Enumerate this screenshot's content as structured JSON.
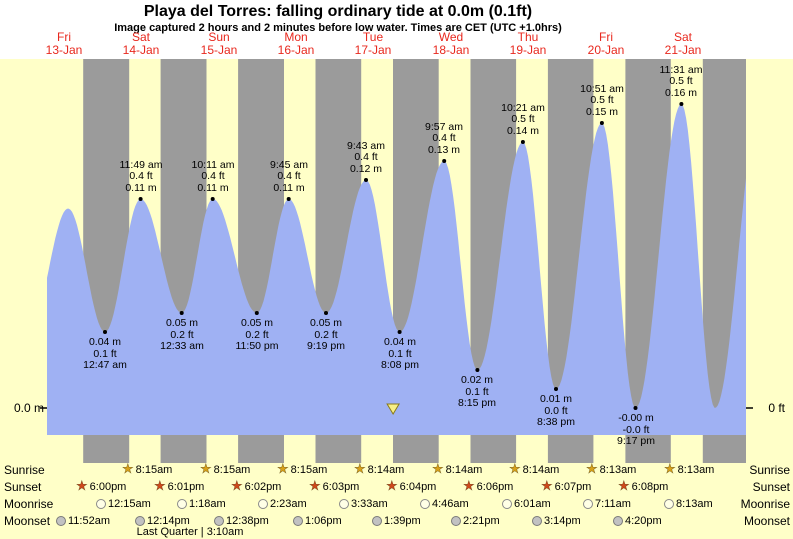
{
  "title": "Playa del Torres: falling  ordinary tide at 0.0m (0.1ft)",
  "subtitle": "Image captured 2 hours and 2 minutes before low water. Times are CET (UTC +1.0hrs)",
  "axis": {
    "left_zero_label": "0.0 m",
    "right_zero_label": "0 ft"
  },
  "days": [
    {
      "name": "Fri",
      "date": "13-Jan"
    },
    {
      "name": "Sat",
      "date": "14-Jan"
    },
    {
      "name": "Sun",
      "date": "15-Jan"
    },
    {
      "name": "Mon",
      "date": "16-Jan"
    },
    {
      "name": "Tue",
      "date": "17-Jan"
    },
    {
      "name": "Wed",
      "date": "18-Jan"
    },
    {
      "name": "Thu",
      "date": "19-Jan"
    },
    {
      "name": "Fri",
      "date": "20-Jan"
    },
    {
      "name": "Sat",
      "date": "21-Jan"
    }
  ],
  "chart_data": {
    "type": "area",
    "x_unit": "days since Fri 13-Jan 00:00 CET",
    "y_unit": "m",
    "x_range_days": [
      0.283,
      9.314
    ],
    "y_axis_zero": {
      "m": "0.0 m",
      "ft": "0 ft"
    },
    "highs": [
      {
        "time": "11:49 am",
        "ft": "0.4 ft",
        "m": "0.11 m",
        "t": 1.4924,
        "h": 0.11
      },
      {
        "time": "10:11 am",
        "ft": "0.4 ft",
        "m": "0.11 m",
        "t": 2.4243,
        "h": 0.11
      },
      {
        "time": "9:45 am",
        "ft": "0.4 ft",
        "m": "0.11 m",
        "t": 3.4063,
        "h": 0.11
      },
      {
        "time": "9:43 am",
        "ft": "0.4 ft",
        "m": "0.12 m",
        "t": 4.4049,
        "h": 0.12
      },
      {
        "time": "9:57 am",
        "ft": "0.4 ft",
        "m": "0.13 m",
        "t": 5.4146,
        "h": 0.13
      },
      {
        "time": "10:21 am",
        "ft": "0.5 ft",
        "m": "0.14 m",
        "t": 6.4313,
        "h": 0.14
      },
      {
        "time": "10:51 am",
        "ft": "0.5 ft",
        "m": "0.15 m",
        "t": 7.4521,
        "h": 0.15
      },
      {
        "time": "11:31 am",
        "ft": "0.5 ft",
        "m": "0.16 m",
        "t": 8.4799,
        "h": 0.16
      }
    ],
    "lows": [
      {
        "m": "0.04 m",
        "ft": "0.1 ft",
        "time": "12:47 am",
        "t": 1.0326,
        "h": 0.04
      },
      {
        "m": "0.05 m",
        "ft": "0.2 ft",
        "time": "12:33 am",
        "t": 2.0229,
        "h": 0.05
      },
      {
        "m": "0.05 m",
        "ft": "0.2 ft",
        "time": "11:50 pm",
        "t": 2.9931,
        "h": 0.05
      },
      {
        "m": "0.05 m",
        "ft": "0.2 ft",
        "time": "9:19 pm",
        "t": 3.8882,
        "h": 0.05
      },
      {
        "m": "0.04 m",
        "ft": "0.1 ft",
        "time": "8:08 pm",
        "t": 4.8389,
        "h": 0.04
      },
      {
        "m": "0.02 m",
        "ft": "0.1 ft",
        "time": "8:15 pm",
        "t": 5.8438,
        "h": 0.02
      },
      {
        "m": "0.01 m",
        "ft": "0.0 ft",
        "time": "8:38 pm",
        "t": 6.8597,
        "h": 0.01
      },
      {
        "m": "-0.00 m",
        "ft": "-0.0 ft",
        "time": "9:17 pm",
        "t": 7.8868,
        "h": 0.0
      }
    ],
    "edge_extremes_unlabeled": [
      {
        "t": 0.05,
        "h": 0.04
      },
      {
        "t": 0.556,
        "h": 0.105
      },
      {
        "t": 8.914,
        "h": 0.0
      },
      {
        "t": 9.51,
        "h": 0.16
      }
    ],
    "capture_marker_t": 4.7542
  },
  "astro": {
    "labels": {
      "sunrise": "Sunrise",
      "sunset": "Sunset",
      "moonrise": "Moonrise",
      "moonset": "Moonset"
    },
    "sunrise": [
      {
        "t": 1.3438,
        "label": "8:15am"
      },
      {
        "t": 2.3438,
        "label": "8:15am"
      },
      {
        "t": 3.3438,
        "label": "8:15am"
      },
      {
        "t": 4.3431,
        "label": "8:14am"
      },
      {
        "t": 5.3431,
        "label": "8:14am"
      },
      {
        "t": 6.3431,
        "label": "8:14am"
      },
      {
        "t": 7.3424,
        "label": "8:13am"
      },
      {
        "t": 8.3424,
        "label": "8:13am"
      }
    ],
    "sunset": [
      {
        "t": 0.75,
        "label": "6:00pm"
      },
      {
        "t": 1.7507,
        "label": "6:01pm"
      },
      {
        "t": 2.7514,
        "label": "6:02pm"
      },
      {
        "t": 3.7521,
        "label": "6:03pm"
      },
      {
        "t": 4.7528,
        "label": "6:04pm"
      },
      {
        "t": 5.7542,
        "label": "6:06pm"
      },
      {
        "t": 6.7549,
        "label": "6:07pm"
      },
      {
        "t": 7.7556,
        "label": "6:08pm"
      }
    ],
    "moonrise": [
      {
        "t": 1.0104,
        "label": "12:15am"
      },
      {
        "t": 2.0542,
        "label": "1:18am"
      },
      {
        "t": 3.0993,
        "label": "2:23am"
      },
      {
        "t": 4.1479,
        "label": "3:33am"
      },
      {
        "t": 5.1986,
        "label": "4:46am"
      },
      {
        "t": 6.2507,
        "label": "6:01am"
      },
      {
        "t": 7.2993,
        "label": "7:11am"
      },
      {
        "t": 8.3424,
        "label": "8:13am"
      }
    ],
    "moonset": [
      {
        "t": 0.4944,
        "label": "11:52am"
      },
      {
        "t": 1.5097,
        "label": "12:14pm"
      },
      {
        "t": 2.5264,
        "label": "12:38pm"
      },
      {
        "t": 3.5458,
        "label": "1:06pm"
      },
      {
        "t": 4.5688,
        "label": "1:39pm"
      },
      {
        "t": 5.5979,
        "label": "2:21pm"
      },
      {
        "t": 6.6347,
        "label": "3:14pm"
      },
      {
        "t": 7.6806,
        "label": "4:20pm"
      }
    ],
    "moon_phase": {
      "label": "Last Quarter | 3:10am",
      "t": 2.1319
    }
  },
  "colors": {
    "header_bg": "#ffffff",
    "day_bg": "#ffffc8",
    "night_band": "#9b9b9b",
    "tide_fill": "#9fb1f3",
    "date_red": "#e8281e",
    "sunrise_star": "#d8a21a",
    "sunset_star": "#d0491b",
    "moonrise_fill": "#ffffe6",
    "moonset_fill": "#c2c2c2",
    "marker_fill": "#f6ef86"
  }
}
